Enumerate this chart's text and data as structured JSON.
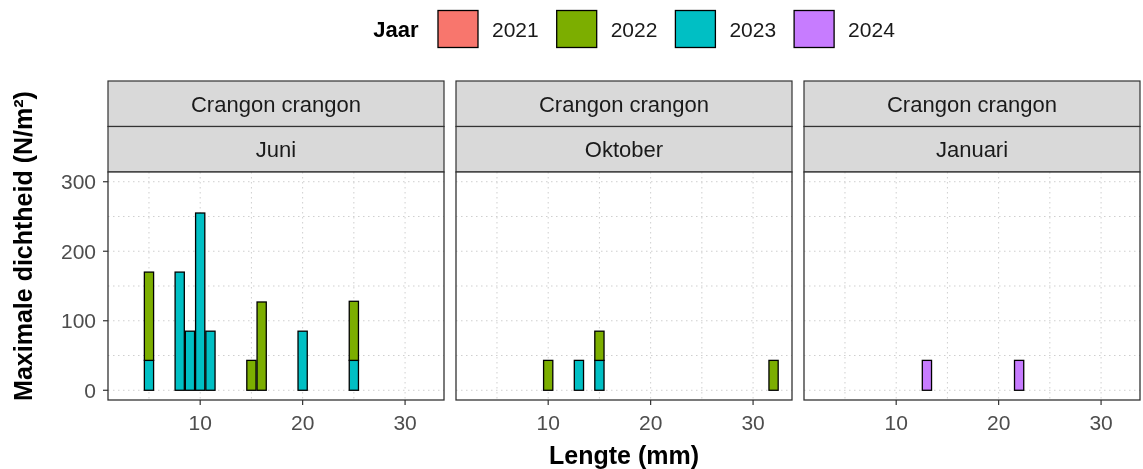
{
  "chart_data": [
    {
      "type": "bar",
      "title": "Crangon crangon",
      "subtitle": "Juni",
      "ylabel": "Maximale dichtheid (N/m²)",
      "legend": "top",
      "legend_title": "Jaar",
      "x": [
        5,
        8,
        9,
        10,
        11,
        15,
        16,
        20,
        25
      ],
      "series": [
        {
          "name": "2024",
          "color": "#c77cff",
          "values": [
            null,
            null,
            null,
            null,
            null,
            null,
            null,
            null,
            null
          ]
        },
        {
          "name": "2023",
          "color": "#00bfc4",
          "values": [
            43,
            170,
            85,
            255,
            85,
            null,
            null,
            85,
            43
          ]
        },
        {
          "name": "2022",
          "color": "#7cae00",
          "values": [
            127,
            null,
            null,
            null,
            null,
            43,
            127,
            null,
            85
          ]
        },
        {
          "name": "2021",
          "color": "#f8766d",
          "values": [
            null,
            null,
            null,
            null,
            null,
            null,
            null,
            null,
            null
          ]
        }
      ],
      "stacked": true,
      "xlim": [
        1,
        33.8
      ],
      "xticks": [
        10,
        20,
        30
      ],
      "ylim": [
        -14,
        314
      ],
      "yticks": [
        0,
        100,
        200,
        300
      ],
      "grid": true
    },
    {
      "type": "bar",
      "title": "Crangon crangon",
      "subtitle": "Oktober",
      "xlabel": "Lengte (mm)",
      "x": [
        10,
        13,
        15,
        32
      ],
      "series": [
        {
          "color": "#00bfc4",
          "values": [
            null,
            43,
            43,
            null
          ]
        },
        {
          "color": "#7cae00",
          "values": [
            43,
            null,
            42,
            43
          ]
        }
      ],
      "stacked": true,
      "xlim": [
        1,
        33.8
      ],
      "xticks": [
        10,
        20,
        30
      ],
      "ylim": [
        -14,
        314
      ],
      "yticks": [
        0,
        100,
        200,
        300
      ],
      "grid": true,
      "tick_labels": "x"
    },
    {
      "type": "bar",
      "title": "Crangon crangon",
      "subtitle": "Januari",
      "x": [
        13,
        22
      ],
      "series": [
        {
          "color": "#c77cff",
          "values": [
            43,
            43
          ]
        }
      ],
      "stacked": true,
      "xlim": [
        1,
        33.8
      ],
      "xticks": [
        10,
        20,
        30
      ],
      "ylim": [
        -14,
        314
      ],
      "yticks": [
        0,
        100,
        200,
        300
      ],
      "grid": true,
      "tick_labels": "x"
    }
  ]
}
